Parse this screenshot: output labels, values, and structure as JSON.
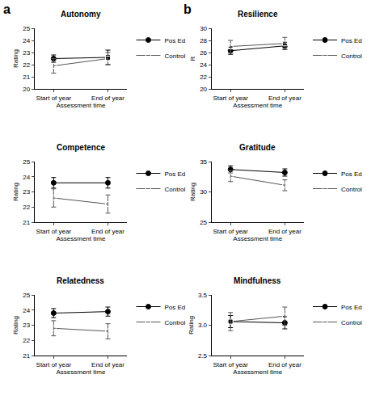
{
  "panel_labels": [
    "a",
    "b"
  ],
  "chart_data": [
    {
      "type": "line",
      "title": "Autonomy",
      "xlabel": "Assessment time",
      "ylabel": "Rating",
      "categories": [
        "Start of year",
        "End of year"
      ],
      "ylim": [
        20,
        25
      ],
      "yticks": [
        20,
        21,
        22,
        23,
        24,
        25
      ],
      "grid": false,
      "legend": "upper right",
      "series": [
        {
          "name": "Pos Ed",
          "color": "#000000",
          "marker": "circle",
          "values": [
            22.5,
            22.6
          ],
          "error": [
            0.3,
            0.6
          ]
        },
        {
          "name": "Control",
          "color": "#555555",
          "marker": "square-open",
          "values": [
            21.9,
            22.5
          ],
          "error": [
            0.6,
            0.5
          ]
        }
      ]
    },
    {
      "type": "line",
      "title": "Competence",
      "xlabel": "Assessment time",
      "ylabel": "Rating",
      "categories": [
        "Start of year",
        "End of year"
      ],
      "ylim": [
        21,
        25
      ],
      "yticks": [
        21,
        22,
        23,
        24,
        25
      ],
      "grid": false,
      "legend": "upper right",
      "series": [
        {
          "name": "Pos Ed",
          "color": "#000000",
          "marker": "circle",
          "values": [
            23.6,
            23.6
          ],
          "error": [
            0.35,
            0.35
          ]
        },
        {
          "name": "Control",
          "color": "#555555",
          "marker": "square-open",
          "values": [
            22.6,
            22.2
          ],
          "error": [
            0.6,
            0.6
          ]
        }
      ]
    },
    {
      "type": "line",
      "title": "Relatedness",
      "xlabel": "Assessment time",
      "ylabel": "Rating",
      "categories": [
        "Start of year",
        "End of year"
      ],
      "ylim": [
        21,
        25
      ],
      "yticks": [
        21,
        22,
        23,
        24,
        25
      ],
      "grid": false,
      "legend": "upper right",
      "series": [
        {
          "name": "Pos Ed",
          "color": "#000000",
          "marker": "circle",
          "values": [
            23.8,
            23.9
          ],
          "error": [
            0.3,
            0.3
          ]
        },
        {
          "name": "Control",
          "color": "#555555",
          "marker": "square-open",
          "values": [
            22.8,
            22.6
          ],
          "error": [
            0.5,
            0.5
          ]
        }
      ]
    },
    {
      "type": "line",
      "title": "Resilience",
      "xlabel": "Assessment time",
      "ylabel": "R",
      "categories": [
        "Start of year",
        "End of year"
      ],
      "ylim": [
        20,
        30
      ],
      "yticks": [
        20,
        22,
        24,
        26,
        28,
        30
      ],
      "grid": false,
      "legend": "upper right",
      "series": [
        {
          "name": "Pos Ed",
          "color": "#000000",
          "marker": "circle",
          "values": [
            26.3,
            27.1
          ],
          "error": [
            0.6,
            0.6
          ]
        },
        {
          "name": "Control",
          "color": "#555555",
          "marker": "square-open",
          "values": [
            27.0,
            27.5
          ],
          "error": [
            1.0,
            1.0
          ]
        }
      ]
    },
    {
      "type": "line",
      "title": "Gratitude",
      "xlabel": "Assessment time",
      "ylabel": "Rating",
      "categories": [
        "Start of year",
        "End of year"
      ],
      "ylim": [
        25,
        35
      ],
      "yticks": [
        25,
        30,
        35
      ],
      "grid": false,
      "legend": "upper right",
      "series": [
        {
          "name": "Pos Ed",
          "color": "#000000",
          "marker": "circle",
          "values": [
            33.7,
            33.2
          ],
          "error": [
            0.6,
            0.6
          ]
        },
        {
          "name": "Control",
          "color": "#555555",
          "marker": "square-open",
          "values": [
            32.6,
            31.1
          ],
          "error": [
            0.9,
            0.9
          ]
        }
      ]
    },
    {
      "type": "line",
      "title": "Mindfulness",
      "xlabel": "Assessment time",
      "ylabel": "Rating",
      "categories": [
        "Start of year",
        "End of year"
      ],
      "ylim": [
        2.5,
        3.5
      ],
      "yticks": [
        {
          "value": 2.5,
          "label": "2.5"
        },
        {
          "value": 3,
          "label": "3.0"
        },
        {
          "value": 3.5,
          "label": "3.5"
        }
      ],
      "grid": false,
      "legend": "upper right",
      "series": [
        {
          "name": "Pos Ed",
          "color": "#000000",
          "marker": "circle",
          "values": [
            3.06,
            3.04
          ],
          "error": [
            0.1,
            0.1
          ]
        },
        {
          "name": "Control",
          "color": "#555555",
          "marker": "square-open",
          "values": [
            3.06,
            3.15
          ],
          "error": [
            0.15,
            0.15
          ]
        }
      ]
    }
  ]
}
